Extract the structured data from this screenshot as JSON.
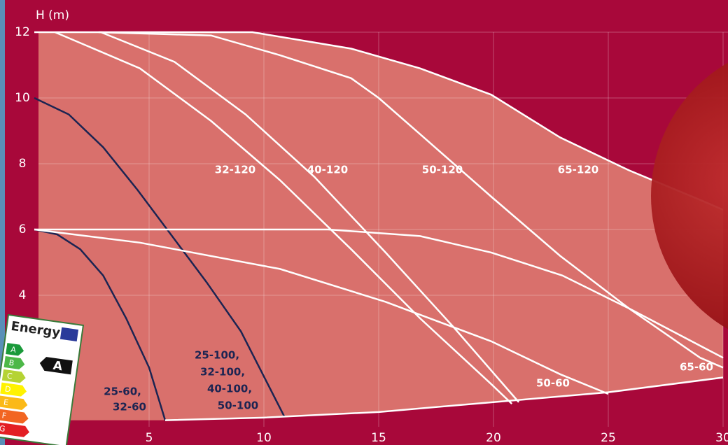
{
  "chart_data": {
    "type": "line",
    "y_label": "H (m)",
    "xlim": [
      0,
      30
    ],
    "ylim": [
      0,
      12
    ],
    "xticks": [
      5,
      10,
      15,
      20,
      25,
      30
    ],
    "yticks": [
      4,
      6,
      8,
      10,
      12
    ],
    "grid": true,
    "series": [
      {
        "label_lines": [
          "25-60,",
          "32-60"
        ],
        "color": "#1c2452",
        "x": [
          0,
          1,
          2,
          3,
          4,
          5,
          5.7
        ],
        "values": [
          6,
          5.85,
          5.4,
          4.6,
          3.3,
          1.8,
          0.2
        ]
      },
      {
        "label_lines": [
          "25-100,",
          "32-100,",
          "40-100,",
          "50-100"
        ],
        "color": "#1c2452",
        "x": [
          0,
          1.5,
          3,
          4.5,
          6,
          7.5,
          9,
          10.9
        ],
        "values": [
          10,
          9.5,
          8.5,
          7.2,
          5.8,
          4.4,
          2.9,
          0.3
        ]
      },
      {
        "label_lines": [
          "32-120"
        ],
        "color": "#ffffff",
        "x": [
          0.9,
          4.6,
          7.7,
          10.7,
          13.8,
          16.8,
          19.9,
          20.8
        ],
        "values": [
          12,
          10.9,
          9.3,
          7.5,
          5.4,
          3.3,
          1.3,
          0.7
        ]
      },
      {
        "label_lines": [
          "40-120"
        ],
        "color": "#ffffff",
        "x": [
          2.9,
          6.1,
          9.2,
          12.2,
          15.3,
          18.3,
          21.1
        ],
        "values": [
          12,
          11.1,
          9.5,
          7.6,
          5.3,
          3,
          0.75
        ]
      },
      {
        "label_lines": [
          "50-120"
        ],
        "color": "#ffffff",
        "x": [
          2.8,
          7.7,
          10.7,
          13.8,
          15,
          16.8,
          19.9,
          22.9,
          25.9,
          29,
          30
        ],
        "values": [
          12,
          11.9,
          11.3,
          10.6,
          10,
          8.9,
          7,
          5.2,
          3.6,
          2.1,
          1.8
        ]
      },
      {
        "label_lines": [
          "65-120"
        ],
        "color": "#ffffff",
        "x": [
          0,
          9.5,
          13.8,
          16.8,
          19.9,
          22.9,
          25.9,
          29,
          30
        ],
        "values": [
          12,
          12,
          11.5,
          10.9,
          10.1,
          8.8,
          7.8,
          6.9,
          6.6
        ]
      },
      {
        "label_lines": [
          "50-60"
        ],
        "color": "#ffffff",
        "x": [
          0,
          4.6,
          10.7,
          15.3,
          19.9,
          22.9,
          25
        ],
        "values": [
          6,
          5.6,
          4.8,
          3.8,
          2.6,
          1.6,
          1
        ]
      },
      {
        "label_lines": [
          "65-60"
        ],
        "color": "#ffffff",
        "x": [
          0,
          12.8,
          16.8,
          19.9,
          23,
          25.9,
          30
        ],
        "values": [
          6,
          6,
          5.8,
          5.3,
          4.6,
          3.6,
          2.1
        ]
      },
      {
        "color": "#ffffff",
        "x": [
          5.7,
          10,
          15,
          20,
          25,
          30
        ],
        "values": [
          0.2,
          0.28,
          0.45,
          0.75,
          1.05,
          1.5
        ]
      }
    ]
  },
  "energy_label": {
    "title": "Energy",
    "rating": "A",
    "classes": [
      "A",
      "B",
      "C",
      "D",
      "E",
      "F",
      "G"
    ]
  }
}
